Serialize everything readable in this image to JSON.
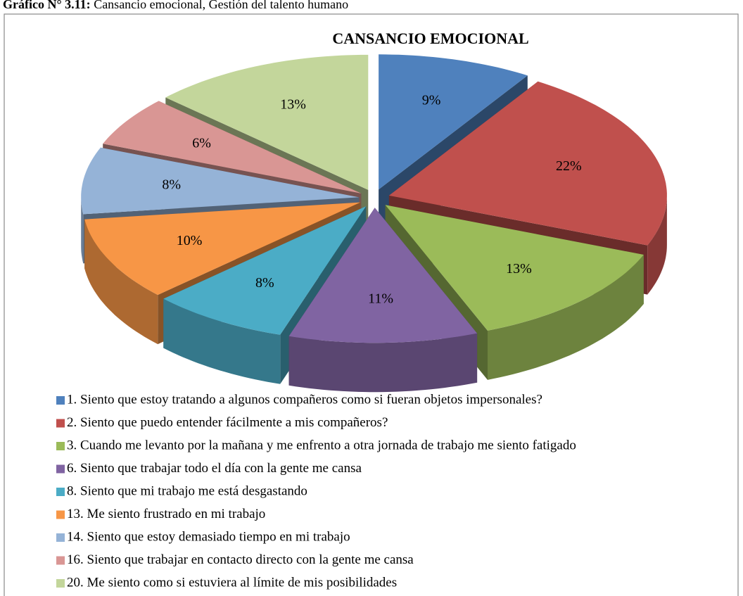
{
  "figure": {
    "label": "Gráfico N° 3.11:",
    "text": "Cansancio emocional, Gestión del talento humano"
  },
  "chart_data": {
    "type": "pie",
    "title": "CANSANCIO EMOCIONAL",
    "categories": [
      "1. Siento que estoy tratando a algunos compañeros como si fueran objetos impersonales?",
      "2. Siento que puedo entender fácilmente a mis compañeros?",
      "3. Cuando me levanto por la mañana y me enfrento a otra jornada de trabajo me siento fatigado",
      "6. Siento que trabajar todo el día con la gente me cansa",
      "8. Siento que mi trabajo me está desgastando",
      "13. Me siento frustrado en mi trabajo",
      "14. Siento que estoy demasiado tiempo en mi trabajo",
      "16. Siento que trabajar en contacto directo con la gente me cansa",
      "20. Me siento como si estuviera al límite de mis posibilidades"
    ],
    "values": [
      9,
      22,
      13,
      11,
      8,
      10,
      8,
      6,
      13
    ],
    "value_labels": [
      "9%",
      "22%",
      "13%",
      "11%",
      "8%",
      "10%",
      "8%",
      "6%",
      "13%"
    ],
    "colors": [
      "#4f81bd",
      "#c0504d",
      "#9bbb59",
      "#8064a2",
      "#4bacc6",
      "#f79646",
      "#95b3d7",
      "#d99694",
      "#c3d69b"
    ],
    "legend": "bottom"
  }
}
